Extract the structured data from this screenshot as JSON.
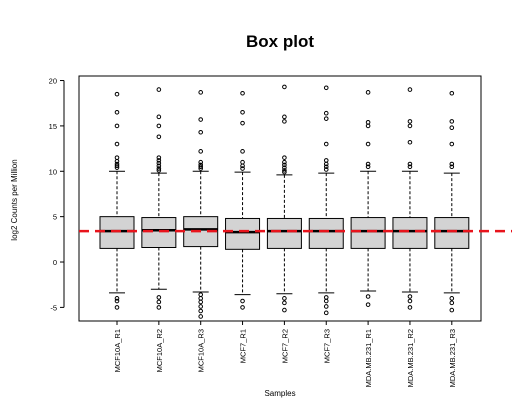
{
  "chart_data": {
    "type": "box",
    "title": "Box plot",
    "xlabel": "Samples",
    "ylabel": "log2 Counts per Million",
    "ylim": [
      -6.5,
      20.5
    ],
    "yticks": [
      -5,
      0,
      5,
      10,
      15,
      20
    ],
    "reference_line": {
      "y": 3.4,
      "color": "#e8141c",
      "style": "dashed"
    },
    "box_color": "#d3d3d3",
    "categories": [
      "MCF10A_R1",
      "MCF10A_R2",
      "MCF10A_R3",
      "MCF7_R1",
      "MCF7_R2",
      "MCF7_R3",
      "MDA.MB.231_R1",
      "MDA.MB.231_R2",
      "MDA.MB.231_R3"
    ],
    "boxes": [
      {
        "name": "MCF10A_R1",
        "whisker_low": -3.4,
        "q1": 1.5,
        "median": 3.4,
        "q3": 5.0,
        "whisker_high": 10.0,
        "outliers": [
          18.5,
          16.5,
          15.0,
          13.0,
          11.5,
          11.1,
          10.8,
          10.6,
          10.4,
          -4.0,
          -4.3,
          -5.0
        ]
      },
      {
        "name": "MCF10A_R2",
        "whisker_low": -3.0,
        "q1": 1.6,
        "median": 3.5,
        "q3": 4.9,
        "whisker_high": 9.8,
        "outliers": [
          19.0,
          16.0,
          15.0,
          13.8,
          11.5,
          11.2,
          10.9,
          10.6,
          10.3,
          10.1,
          -3.9,
          -4.4,
          -5.0
        ]
      },
      {
        "name": "MCF10A_R3",
        "whisker_low": -3.3,
        "q1": 1.7,
        "median": 3.6,
        "q3": 5.0,
        "whisker_high": 10.0,
        "outliers": [
          18.7,
          15.7,
          14.3,
          12.2,
          11.0,
          10.7,
          10.5,
          10.3,
          -3.6,
          -4.0,
          -4.4,
          -4.9,
          -5.4,
          -6.0
        ]
      },
      {
        "name": "MCF7_R1",
        "whisker_low": -3.6,
        "q1": 1.4,
        "median": 3.3,
        "q3": 4.8,
        "whisker_high": 9.9,
        "outliers": [
          18.6,
          16.5,
          15.3,
          12.2,
          11.0,
          10.6,
          10.3,
          -4.3,
          -5.0
        ]
      },
      {
        "name": "MCF7_R2",
        "whisker_low": -3.5,
        "q1": 1.5,
        "median": 3.4,
        "q3": 4.8,
        "whisker_high": 9.6,
        "outliers": [
          19.3,
          16.0,
          15.5,
          11.5,
          11.0,
          10.7,
          10.4,
          10.1,
          9.9,
          -4.0,
          -4.5,
          -5.3
        ]
      },
      {
        "name": "MCF7_R3",
        "whisker_low": -3.4,
        "q1": 1.5,
        "median": 3.4,
        "q3": 4.8,
        "whisker_high": 9.8,
        "outliers": [
          19.2,
          16.4,
          15.8,
          13.0,
          11.2,
          10.8,
          10.5,
          10.2,
          -3.9,
          -4.3,
          -4.9,
          -5.6
        ]
      },
      {
        "name": "MDA.MB.231_R1",
        "whisker_low": -3.2,
        "q1": 1.5,
        "median": 3.4,
        "q3": 4.9,
        "whisker_high": 10.0,
        "outliers": [
          18.7,
          15.4,
          15.0,
          13.0,
          10.8,
          10.5,
          -3.8,
          -4.7
        ]
      },
      {
        "name": "MDA.MB.231_R2",
        "whisker_low": -3.3,
        "q1": 1.5,
        "median": 3.4,
        "q3": 4.9,
        "whisker_high": 10.0,
        "outliers": [
          19.0,
          15.5,
          15.0,
          13.2,
          10.8,
          10.5,
          -3.8,
          -4.3,
          -5.0
        ]
      },
      {
        "name": "MDA.MB.231_R3",
        "whisker_low": -3.4,
        "q1": 1.5,
        "median": 3.4,
        "q3": 4.9,
        "whisker_high": 9.8,
        "outliers": [
          18.6,
          15.5,
          14.8,
          13.0,
          10.8,
          10.5,
          -4.0,
          -4.5,
          -5.3
        ]
      }
    ]
  }
}
